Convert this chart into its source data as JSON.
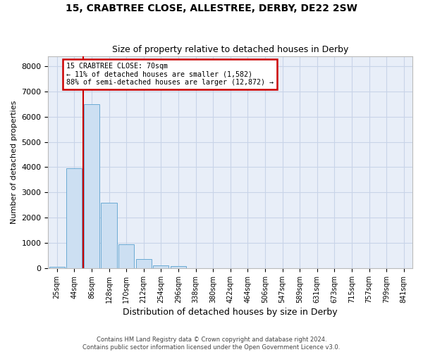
{
  "title": "15, CRABTREE CLOSE, ALLESTREE, DERBY, DE22 2SW",
  "subtitle": "Size of property relative to detached houses in Derby",
  "xlabel": "Distribution of detached houses by size in Derby",
  "ylabel": "Number of detached properties",
  "bar_categories": [
    "25sqm",
    "44sqm",
    "86sqm",
    "128sqm",
    "170sqm",
    "212sqm",
    "254sqm",
    "296sqm",
    "338sqm",
    "380sqm",
    "422sqm",
    "464sqm",
    "506sqm",
    "547sqm",
    "589sqm",
    "631sqm",
    "673sqm",
    "715sqm",
    "757sqm",
    "799sqm",
    "841sqm"
  ],
  "bar_values": [
    50,
    3950,
    6500,
    2600,
    950,
    350,
    120,
    90,
    0,
    0,
    0,
    0,
    0,
    0,
    0,
    0,
    0,
    0,
    0,
    0,
    0
  ],
  "bar_color": "#ccdff2",
  "bar_edgecolor": "#6aaad4",
  "vline_x": 1.5,
  "annotation_title": "15 CRABTREE CLOSE: 70sqm",
  "annotation_line1": "← 11% of detached houses are smaller (1,582)",
  "annotation_line2": "88% of semi-detached houses are larger (12,872) →",
  "vline_color": "#cc0000",
  "annotation_box_color": "#cc0000",
  "ylim": [
    0,
    8400
  ],
  "yticks": [
    0,
    1000,
    2000,
    3000,
    4000,
    5000,
    6000,
    7000,
    8000
  ],
  "grid_color": "#c8d4e8",
  "background_color": "#e8eef8",
  "footer_line1": "Contains HM Land Registry data © Crown copyright and database right 2024.",
  "footer_line2": "Contains public sector information licensed under the Open Government Licence v3.0."
}
